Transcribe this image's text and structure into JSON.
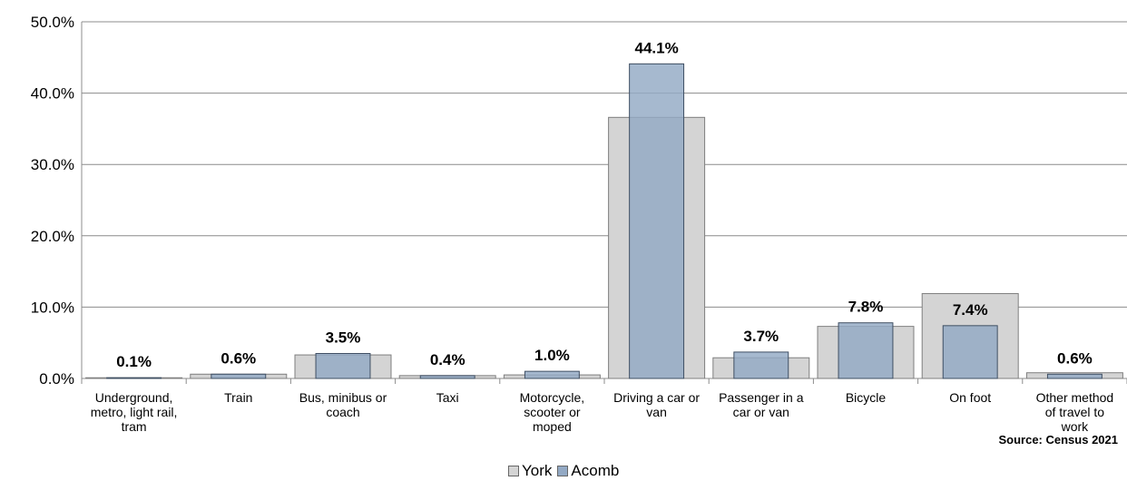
{
  "chart_data": {
    "type": "bar",
    "categories": [
      [
        "Underground,",
        "metro, light rail,",
        "tram"
      ],
      [
        "Train"
      ],
      [
        "Bus, minibus or",
        "coach"
      ],
      [
        "Taxi"
      ],
      [
        "Motorcycle,",
        "scooter or",
        "moped"
      ],
      [
        "Driving a car or",
        "van"
      ],
      [
        "Passenger in a",
        "car or van"
      ],
      [
        "Bicycle"
      ],
      [
        "On foot"
      ],
      [
        "Other method",
        "of travel to",
        "work"
      ]
    ],
    "series": [
      {
        "name": "York",
        "values": [
          0.1,
          0.6,
          3.3,
          0.4,
          0.5,
          36.6,
          2.9,
          7.3,
          11.9,
          0.8
        ],
        "color": "#d4d4d4"
      },
      {
        "name": "Acomb",
        "values": [
          0.1,
          0.6,
          3.5,
          0.4,
          1.0,
          44.1,
          3.7,
          7.8,
          7.4,
          0.6
        ],
        "color": "#93a9c4"
      }
    ],
    "data_labels": [
      "0.1%",
      "0.6%",
      "3.5%",
      "0.4%",
      "1.0%",
      "44.1%",
      "3.7%",
      "7.8%",
      "7.4%",
      "0.6%"
    ],
    "y_ticks": [
      "0.0%",
      "10.0%",
      "20.0%",
      "30.0%",
      "40.0%",
      "50.0%"
    ],
    "ylim": [
      0,
      50
    ],
    "grid": true,
    "legend_position": "bottom-center"
  },
  "legend": {
    "york": "York",
    "acomb": "Acomb"
  },
  "source": "Source: Census 2021"
}
